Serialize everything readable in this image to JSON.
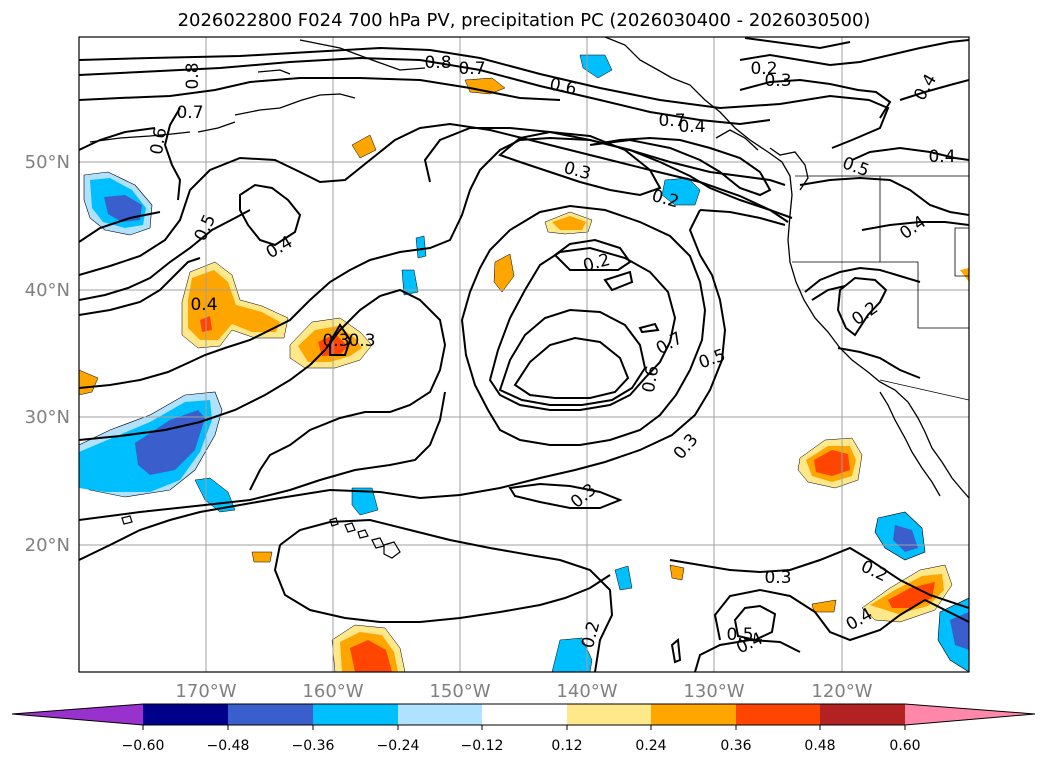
{
  "title": "2026022800 F024 700 hPa PV, precipitation PC (2026030400 - 2026030500)",
  "map": {
    "lat_labels": [
      "50°N",
      "40°N",
      "30°N",
      "20°N"
    ],
    "lon_labels": [
      "170°W",
      "160°W",
      "150°W",
      "140°W",
      "130°W",
      "120°W"
    ],
    "contour_labels": [
      "0.8",
      "0.7",
      "0.6",
      "0.3",
      "0.2",
      "0.4",
      "0.6",
      "0.7",
      "0.5",
      "0.4",
      "0.3",
      "0.2",
      "0.7",
      "0.5",
      "0.6",
      "0.3",
      "0.7",
      "0.3",
      "0.3",
      "0.2",
      "0.2",
      "0.3",
      "0.4",
      "0.5",
      "0.4",
      "0.2",
      "0.4",
      "0.4",
      "0.5",
      "0.2",
      "0.3",
      "0.8",
      "0.4",
      "0.4"
    ],
    "colors": {
      "coast": "#000000",
      "contour": "#000000",
      "grid": "#a0a0a0"
    }
  },
  "colorbar": {
    "ticks": [
      "−0.60",
      "−0.48",
      "−0.36",
      "−0.24",
      "−0.12",
      "0.12",
      "0.24",
      "0.36",
      "0.48",
      "0.60"
    ],
    "colors": [
      "#9932cc",
      "#00008b",
      "#3a5fcd",
      "#00bfff",
      "#b0e2ff",
      "#ffffff",
      "#ffe88a",
      "#ffa500",
      "#ff4500",
      "#b22222",
      "#ff88aa"
    ]
  }
}
